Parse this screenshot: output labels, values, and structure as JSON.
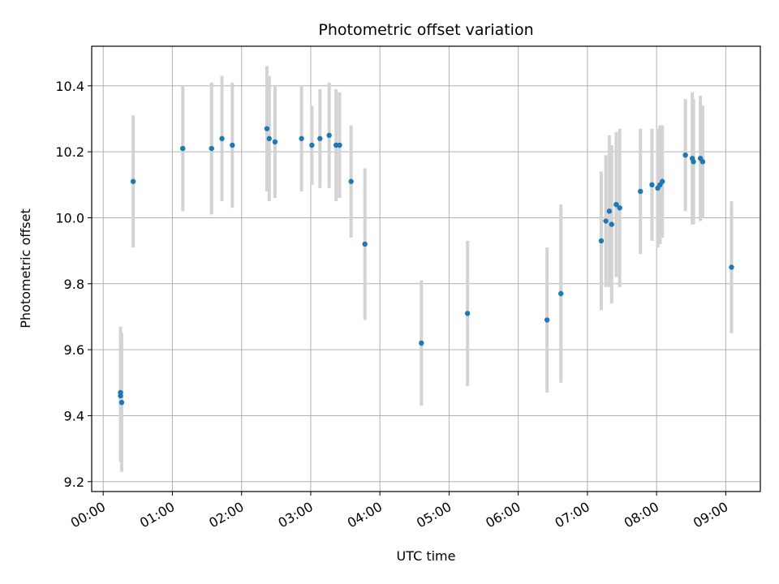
{
  "chart_data": {
    "type": "scatter",
    "title": "Photometric offset variation",
    "xlabel": "UTC time",
    "ylabel": "Photometric offset",
    "x_unit": "hours UTC",
    "xlim": [
      "23:50",
      "09:30"
    ],
    "ylim": [
      9.17,
      10.52
    ],
    "grid": true,
    "x_ticks": [
      "00:00",
      "01:00",
      "02:00",
      "03:00",
      "04:00",
      "05:00",
      "06:00",
      "07:00",
      "08:00",
      "09:00"
    ],
    "y_ticks": [
      "9.2",
      "9.4",
      "9.6",
      "9.8",
      "10.0",
      "10.2",
      "10.4"
    ],
    "point_color": "#1f77b4",
    "errorbar_color": "#d3d3d3",
    "points": [
      {
        "x": "00:15",
        "y": 9.47,
        "err": 0.2
      },
      {
        "x": "00:15",
        "y": 9.46,
        "err": 0.2
      },
      {
        "x": "00:16",
        "y": 9.44,
        "err": 0.21
      },
      {
        "x": "00:26",
        "y": 10.11,
        "err": 0.2
      },
      {
        "x": "01:09",
        "y": 10.21,
        "err": 0.19
      },
      {
        "x": "01:34",
        "y": 10.21,
        "err": 0.2
      },
      {
        "x": "01:43",
        "y": 10.24,
        "err": 0.19
      },
      {
        "x": "01:52",
        "y": 10.22,
        "err": 0.19
      },
      {
        "x": "02:22",
        "y": 10.27,
        "err": 0.19
      },
      {
        "x": "02:24",
        "y": 10.24,
        "err": 0.19
      },
      {
        "x": "02:29",
        "y": 10.23,
        "err": 0.17
      },
      {
        "x": "02:52",
        "y": 10.24,
        "err": 0.16
      },
      {
        "x": "03:01",
        "y": 10.22,
        "err": 0.12
      },
      {
        "x": "03:08",
        "y": 10.24,
        "err": 0.15
      },
      {
        "x": "03:16",
        "y": 10.25,
        "err": 0.16
      },
      {
        "x": "03:22",
        "y": 10.22,
        "err": 0.17
      },
      {
        "x": "03:25",
        "y": 10.22,
        "err": 0.16
      },
      {
        "x": "03:35",
        "y": 10.11,
        "err": 0.17
      },
      {
        "x": "03:47",
        "y": 9.92,
        "err": 0.23
      },
      {
        "x": "04:36",
        "y": 9.62,
        "err": 0.19
      },
      {
        "x": "05:16",
        "y": 9.71,
        "err": 0.22
      },
      {
        "x": "06:25",
        "y": 9.69,
        "err": 0.22
      },
      {
        "x": "06:37",
        "y": 9.77,
        "err": 0.27
      },
      {
        "x": "07:12",
        "y": 9.93,
        "err": 0.21
      },
      {
        "x": "07:16",
        "y": 9.99,
        "err": 0.2
      },
      {
        "x": "07:19",
        "y": 10.02,
        "err": 0.23
      },
      {
        "x": "07:21",
        "y": 9.98,
        "err": 0.24
      },
      {
        "x": "07:25",
        "y": 10.04,
        "err": 0.22
      },
      {
        "x": "07:28",
        "y": 10.03,
        "err": 0.24
      },
      {
        "x": "07:46",
        "y": 10.08,
        "err": 0.19
      },
      {
        "x": "07:56",
        "y": 10.1,
        "err": 0.17
      },
      {
        "x": "08:01",
        "y": 10.09,
        "err": 0.18
      },
      {
        "x": "08:03",
        "y": 10.1,
        "err": 0.18
      },
      {
        "x": "08:05",
        "y": 10.11,
        "err": 0.17
      },
      {
        "x": "08:25",
        "y": 10.19,
        "err": 0.17
      },
      {
        "x": "08:31",
        "y": 10.18,
        "err": 0.2
      },
      {
        "x": "08:32",
        "y": 10.17,
        "err": 0.19
      },
      {
        "x": "08:38",
        "y": 10.18,
        "err": 0.19
      },
      {
        "x": "08:40",
        "y": 10.17,
        "err": 0.17
      },
      {
        "x": "09:05",
        "y": 9.85,
        "err": 0.2
      }
    ]
  }
}
